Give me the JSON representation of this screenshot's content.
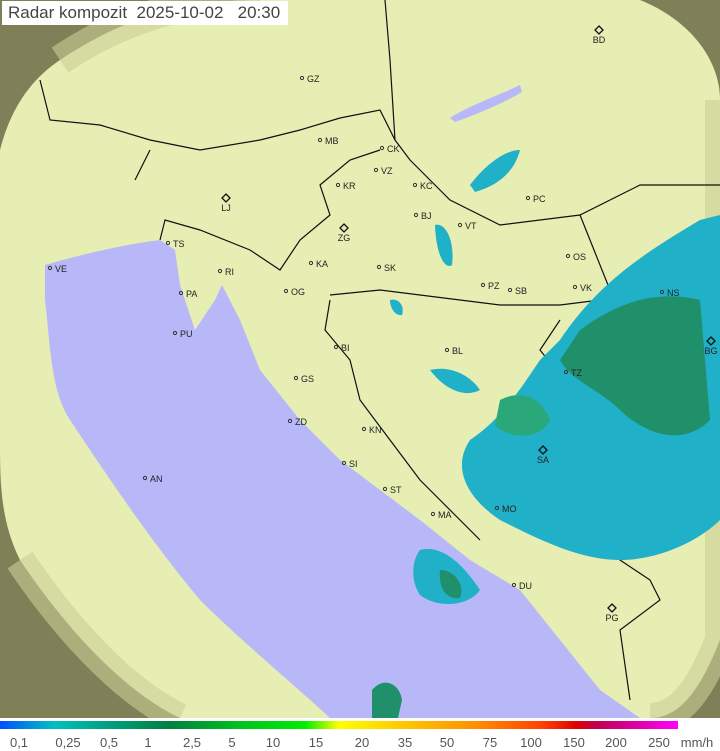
{
  "title": "Radar kompozit  2025-10-02   20:30",
  "legend": {
    "ticks": [
      "0,1",
      "0,25",
      "0,5",
      "1",
      "2,5",
      "5",
      "10",
      "15",
      "20",
      "35",
      "50",
      "75",
      "100",
      "150",
      "200",
      "250"
    ],
    "unit": "mm/h"
  },
  "colors": {
    "sea": "#b8b8f8",
    "land": "#e6eeb4",
    "outside": "#8a8a60",
    "echo_light": "#20b0c8",
    "echo_dark": "#20906a"
  },
  "cities": [
    {
      "code": "BD",
      "marker": "diamond"
    },
    {
      "code": "GZ",
      "marker": "dot"
    },
    {
      "code": "MB",
      "marker": "dot"
    },
    {
      "code": "CK",
      "marker": "dot"
    },
    {
      "code": "VZ",
      "marker": "dot"
    },
    {
      "code": "KR",
      "marker": "dot"
    },
    {
      "code": "KC",
      "marker": "dot"
    },
    {
      "code": "PC",
      "marker": "dot"
    },
    {
      "code": "LJ",
      "marker": "diamond"
    },
    {
      "code": "TS",
      "marker": "dot"
    },
    {
      "code": "ZG",
      "marker": "diamond"
    },
    {
      "code": "BJ",
      "marker": "dot"
    },
    {
      "code": "VT",
      "marker": "dot"
    },
    {
      "code": "VE",
      "marker": "dot"
    },
    {
      "code": "RI",
      "marker": "dot"
    },
    {
      "code": "KA",
      "marker": "dot"
    },
    {
      "code": "SK",
      "marker": "dot"
    },
    {
      "code": "OS",
      "marker": "dot"
    },
    {
      "code": "PA",
      "marker": "dot"
    },
    {
      "code": "OG",
      "marker": "dot"
    },
    {
      "code": "PZ",
      "marker": "dot"
    },
    {
      "code": "SB",
      "marker": "dot"
    },
    {
      "code": "VK",
      "marker": "dot"
    },
    {
      "code": "NS",
      "marker": "dot"
    },
    {
      "code": "PU",
      "marker": "dot"
    },
    {
      "code": "BI",
      "marker": "dot"
    },
    {
      "code": "BL",
      "marker": "dot"
    },
    {
      "code": "BG",
      "marker": "diamond"
    },
    {
      "code": "GS",
      "marker": "dot"
    },
    {
      "code": "TZ",
      "marker": "dot"
    },
    {
      "code": "ZD",
      "marker": "dot"
    },
    {
      "code": "KN",
      "marker": "dot"
    },
    {
      "code": "SA",
      "marker": "diamond"
    },
    {
      "code": "SI",
      "marker": "dot"
    },
    {
      "code": "AN",
      "marker": "dot"
    },
    {
      "code": "ST",
      "marker": "dot"
    },
    {
      "code": "MA",
      "marker": "dot"
    },
    {
      "code": "MO",
      "marker": "dot"
    },
    {
      "code": "DU",
      "marker": "dot"
    },
    {
      "code": "PG",
      "marker": "diamond"
    }
  ]
}
